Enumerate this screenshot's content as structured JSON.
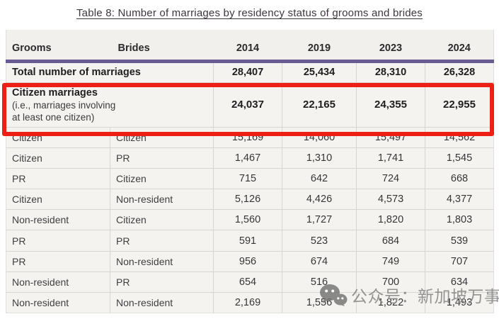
{
  "title": "Table 8: Number of marriages by residency status of grooms and brides",
  "table": {
    "columns": [
      "Grooms",
      "Brides",
      "2014",
      "2019",
      "2023",
      "2024"
    ],
    "total_row": {
      "label": "Total number of marriages",
      "values": [
        "28,407",
        "25,434",
        "28,310",
        "26,328"
      ]
    },
    "citizen_row": {
      "label": "Citizen marriages",
      "note_line1": "(i.e., marriages involving",
      "note_line2": "at least one citizen)",
      "values": [
        "24,037",
        "22,165",
        "24,355",
        "22,955"
      ],
      "highlighted": true
    },
    "rows": [
      {
        "groom": "Citizen",
        "bride": "Citizen",
        "values": [
          "15,169",
          "14,060",
          "15,497",
          "14,562"
        ]
      },
      {
        "groom": "Citizen",
        "bride": "PR",
        "values": [
          "1,467",
          "1,310",
          "1,741",
          "1,545"
        ]
      },
      {
        "groom": "PR",
        "bride": "Citizen",
        "values": [
          "715",
          "642",
          "724",
          "668"
        ]
      },
      {
        "groom": "Citizen",
        "bride": "Non-resident",
        "values": [
          "5,126",
          "4,426",
          "4,573",
          "4,377"
        ]
      },
      {
        "groom": "Non-resident",
        "bride": "Citizen",
        "values": [
          "1,560",
          "1,727",
          "1,820",
          "1,803"
        ]
      },
      {
        "groom": "PR",
        "bride": "PR",
        "values": [
          "591",
          "523",
          "684",
          "539"
        ]
      },
      {
        "groom": "PR",
        "bride": "Non-resident",
        "values": [
          "956",
          "674",
          "749",
          "707"
        ]
      },
      {
        "groom": "Non-resident",
        "bride": "PR",
        "values": [
          "654",
          "516",
          "700",
          "634"
        ]
      },
      {
        "groom": "Non-resident",
        "bride": "Non-resident",
        "values": [
          "2,169",
          "1,556",
          "1,822",
          "1,493"
        ]
      }
    ]
  },
  "watermark": {
    "icon": "wechat-icon",
    "text": "公众号：新加坡万事通"
  },
  "colors": {
    "accent_purple": "#685a92",
    "highlight_red": "#ee2015",
    "table_bg": "#f5f3f0",
    "header_bg": "#f2f0ed",
    "border": "#d9d6d2",
    "title_text": "#3d363e",
    "watermark_gray": "#8b8b8b"
  }
}
